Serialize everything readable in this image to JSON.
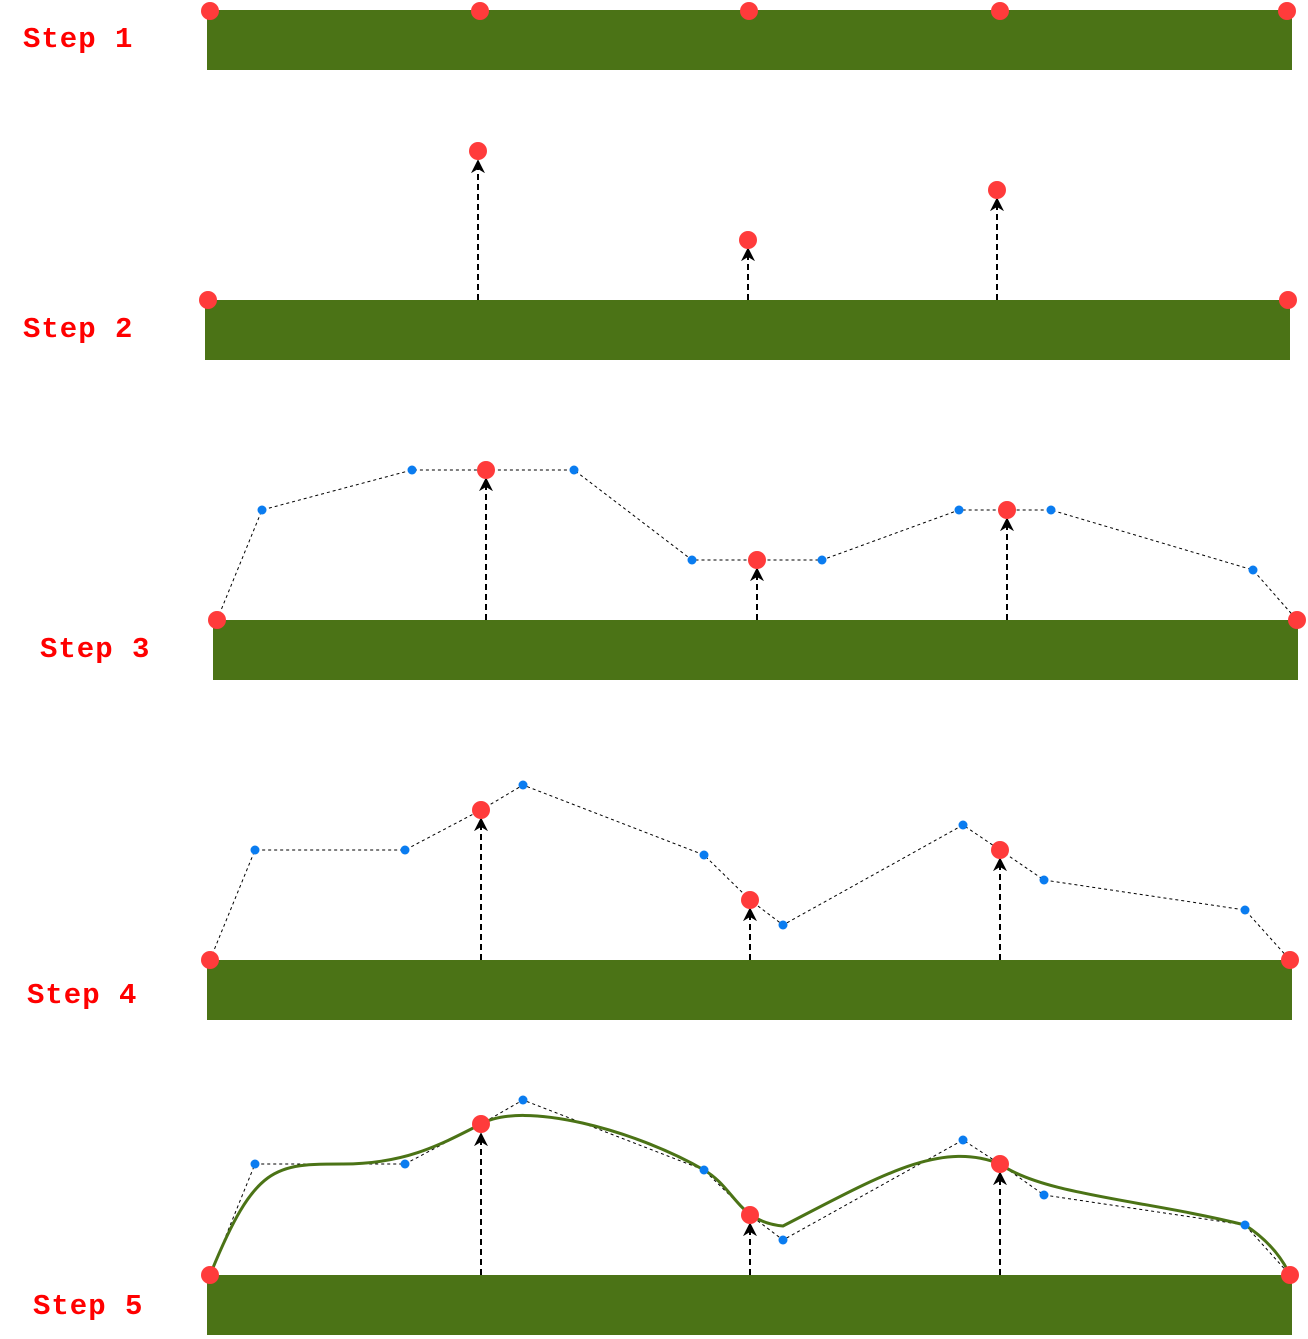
{
  "colors": {
    "ground": "#4b7316",
    "key_point": "#ff3b3b",
    "control_point": "#0a7cf0",
    "arrow": "#000000",
    "curve": "#4b7316",
    "label": "#ff0000"
  },
  "steps": [
    {
      "label": "Step 1"
    },
    {
      "label": "Step 2"
    },
    {
      "label": "Step 3"
    },
    {
      "label": "Step 4"
    },
    {
      "label": "Step 5"
    }
  ]
}
